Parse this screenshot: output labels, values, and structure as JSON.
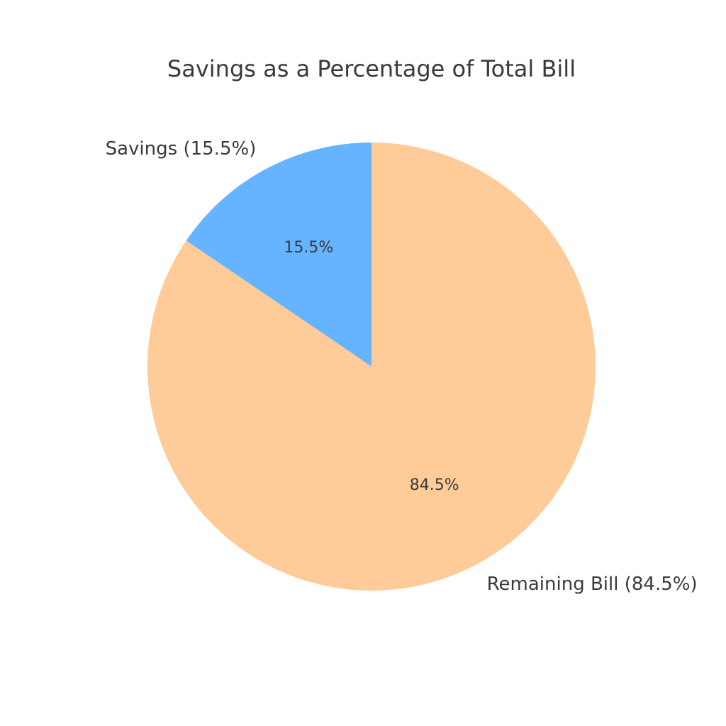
{
  "chart_data": {
    "type": "pie",
    "title": "Savings as a Percentage of Total Bill",
    "start_angle": 90,
    "direction": "counterclockwise",
    "slices": [
      {
        "label": "Savings (15.5%)",
        "value": 15.5,
        "pct_text": "15.5%",
        "color": "#66b3ff"
      },
      {
        "label": "Remaining Bill (84.5%)",
        "value": 84.5,
        "pct_text": "84.5%",
        "color": "#ffcc99"
      }
    ]
  }
}
